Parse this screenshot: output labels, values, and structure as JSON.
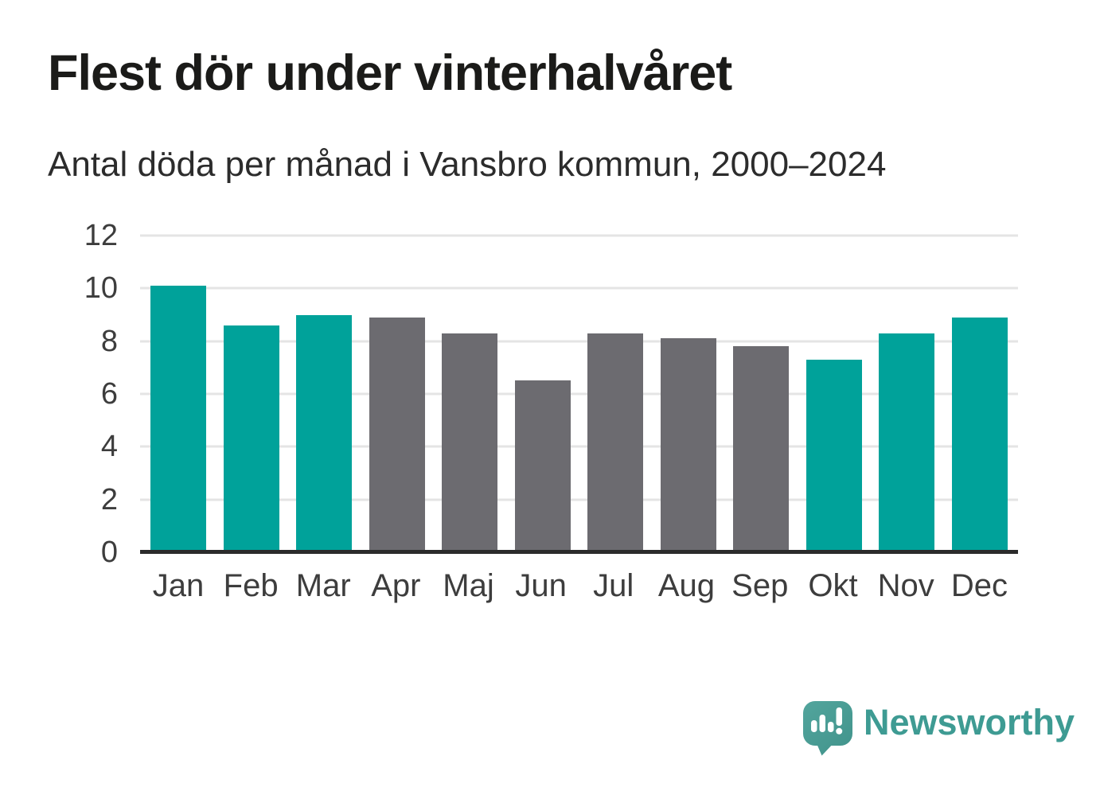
{
  "header": {
    "title": "Flest dör under vinterhalvåret",
    "subtitle": "Antal döda per månad i Vansbro kommun, 2000–2024"
  },
  "chart_data": {
    "type": "bar",
    "categories": [
      "Jan",
      "Feb",
      "Mar",
      "Apr",
      "Maj",
      "Jun",
      "Jul",
      "Aug",
      "Sep",
      "Okt",
      "Nov",
      "Dec"
    ],
    "values": [
      10.1,
      8.6,
      9.0,
      8.9,
      8.3,
      6.5,
      8.3,
      8.1,
      7.8,
      7.3,
      8.3,
      8.9
    ],
    "bar_colors": [
      "highlight",
      "highlight",
      "highlight",
      "muted",
      "muted",
      "muted",
      "muted",
      "muted",
      "muted",
      "highlight",
      "highlight",
      "highlight"
    ],
    "title": "Flest dör under vinterhalvåret",
    "subtitle": "Antal döda per månad i Vansbro kommun, 2000–2024",
    "xlabel": "",
    "ylabel": "",
    "y_ticks": [
      0,
      2,
      4,
      6,
      8,
      10,
      12
    ],
    "ylim": [
      0,
      12
    ],
    "grid": true,
    "legend": "none",
    "colors": {
      "highlight": "#00a29a",
      "muted": "#6c6b70",
      "gridline": "#e4e4e4",
      "axis": "#2b2b2b",
      "tick_text": "#3d3d3d"
    }
  },
  "branding": {
    "logo_text": "Newsworthy",
    "logo_text_color": "#3e9b93",
    "logo_icon": "speech-bubble-bar-chart-icon",
    "logo_icon_color_start": "#52a59d",
    "logo_icon_color_end": "#41938b"
  }
}
